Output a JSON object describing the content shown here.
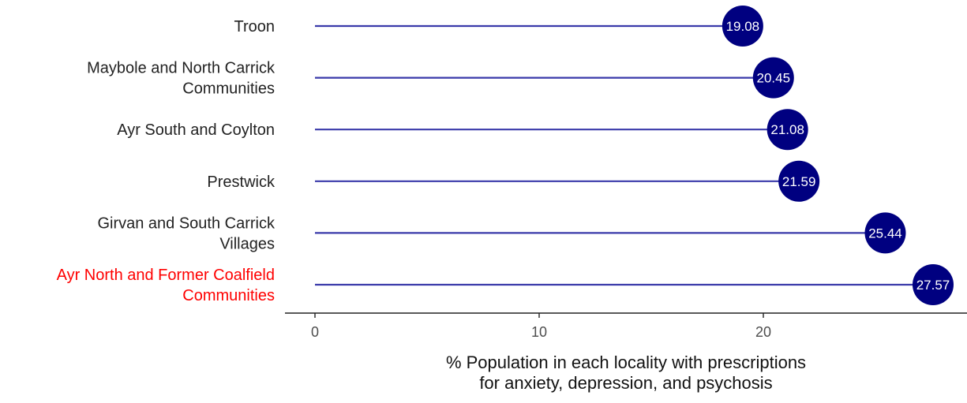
{
  "chart_data": {
    "type": "lollipop",
    "title": "",
    "xlabel": "% Population in each locality with prescriptions for anxiety, depression, and psychosis",
    "xlabel_lines": [
      "% Population in each locality with prescriptions",
      "for anxiety, depression, and psychosis"
    ],
    "ylabel": "",
    "xlim": [
      0,
      28.8
    ],
    "x_ticks": [
      0,
      10,
      20
    ],
    "grid": false,
    "legend": "none",
    "colors": {
      "point": "#000080",
      "stem": "#3a3aaa",
      "label_text": "#ffffff",
      "axis": "#222222",
      "category_text": "#222222",
      "highlight_text": "#ff0000"
    },
    "categories": [
      {
        "lines": [
          "Troon"
        ],
        "value": 19.08,
        "label": "19.08",
        "highlight": false
      },
      {
        "lines": [
          "Maybole and North Carrick",
          "Communities"
        ],
        "value": 20.45,
        "label": "20.45",
        "highlight": false
      },
      {
        "lines": [
          "Ayr South and Coylton"
        ],
        "value": 21.08,
        "label": "21.08",
        "highlight": false
      },
      {
        "lines": [
          "Prestwick"
        ],
        "value": 21.59,
        "label": "21.59",
        "highlight": false
      },
      {
        "lines": [
          "Girvan and South Carrick",
          "Villages"
        ],
        "value": 25.44,
        "label": "25.44",
        "highlight": false
      },
      {
        "lines": [
          "Ayr North and Former Coalfield",
          "Communities"
        ],
        "value": 27.57,
        "label": "27.57",
        "highlight": true
      }
    ]
  }
}
